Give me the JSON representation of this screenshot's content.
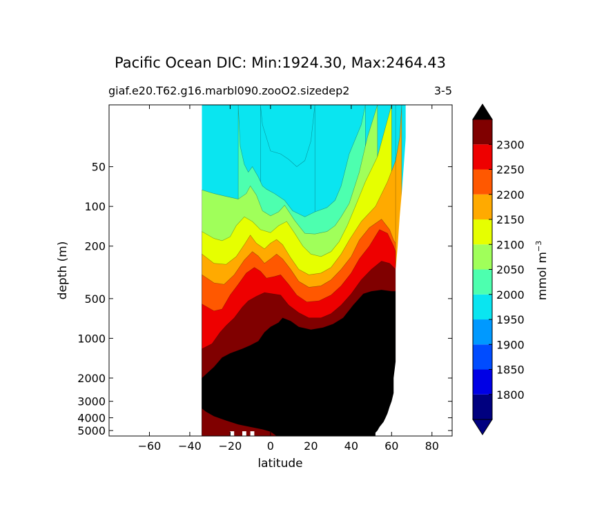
{
  "chart_data": {
    "type": "filled-contour",
    "title": "Pacific Ocean DIC: Min:1924.30, Max:2464.43",
    "subtitle_left": "giaf.e20.T62.g16.marbl090.zooO2.sizedep2",
    "subtitle_right": "3-5",
    "xlabel": "latitude",
    "ylabel": "depth (m)",
    "xlim": [
      -80,
      90
    ],
    "yscale": "log",
    "ylim_depth": [
      5500,
      17
    ],
    "x_ticks": [
      -60,
      -40,
      -20,
      0,
      20,
      40,
      60,
      80
    ],
    "x_tick_labels": [
      "−60",
      "−40",
      "−20",
      "0",
      "20",
      "40",
      "60",
      "80"
    ],
    "y_ticks": [
      50,
      100,
      200,
      500,
      1000,
      2000,
      3000,
      4000,
      5000
    ],
    "y_tick_labels": [
      "50",
      "100",
      "200",
      "500",
      "1000",
      "2000",
      "3000",
      "4000",
      "5000"
    ],
    "colorbar": {
      "label": "mmol m",
      "label_exponent": "−3",
      "levels": [
        1750,
        1800,
        1850,
        1900,
        1950,
        2000,
        2050,
        2100,
        2150,
        2200,
        2250,
        2300,
        2350
      ],
      "tick_values": [
        1800,
        1850,
        1900,
        1950,
        2000,
        2050,
        2100,
        2150,
        2200,
        2250,
        2300
      ],
      "tick_labels": [
        "1800",
        "1850",
        "1900",
        "1950",
        "2000",
        "2050",
        "2100",
        "2150",
        "2200",
        "2250",
        "2300"
      ],
      "colors": [
        "#00007f",
        "#0000e5",
        "#004cff",
        "#0099ff",
        "#0ae5f0",
        "#4dffaf",
        "#a0ff5a",
        "#e6ff00",
        "#ffaa00",
        "#ff5800",
        "#ee0000",
        "#800000"
      ],
      "extend": "both",
      "over_color": "#000000",
      "under_color": "#000080"
    },
    "ocean_extent_lat": [
      -34,
      67
    ],
    "surface_depth_m": 17,
    "bottom_depth_m": 5500,
    "contour_boundaries": [
      {
        "level": 1950,
        "points": [
          [
            -5,
            17
          ],
          [
            -4,
            24
          ],
          [
            0,
            38
          ],
          [
            5,
            40
          ],
          [
            9,
            44
          ],
          [
            13,
            50
          ],
          [
            17,
            45
          ],
          [
            20,
            32
          ],
          [
            22,
            17
          ]
        ]
      },
      {
        "level": 2000,
        "points": [
          [
            -16,
            17
          ],
          [
            -15,
            35
          ],
          [
            -13,
            48
          ],
          [
            -11,
            55
          ],
          [
            -9,
            50
          ],
          [
            -6,
            60
          ],
          [
            -4,
            70
          ],
          [
            -2,
            74
          ],
          [
            2,
            80
          ],
          [
            7,
            90
          ],
          [
            11,
            108
          ],
          [
            17,
            120
          ],
          [
            22,
            110
          ],
          [
            28,
            102
          ],
          [
            32,
            90
          ],
          [
            35,
            70
          ],
          [
            39,
            40
          ],
          [
            45,
            24
          ],
          [
            47,
            17
          ]
        ]
      },
      {
        "level": 2050,
        "points": [
          [
            -34,
            75
          ],
          [
            -28,
            80
          ],
          [
            -22,
            84
          ],
          [
            -16,
            88
          ],
          [
            -12,
            80
          ],
          [
            -10,
            70
          ],
          [
            -7,
            82
          ],
          [
            -4,
            108
          ],
          [
            0,
            118
          ],
          [
            4,
            110
          ],
          [
            7,
            98
          ],
          [
            12,
            128
          ],
          [
            17,
            160
          ],
          [
            22,
            162
          ],
          [
            28,
            155
          ],
          [
            32,
            140
          ],
          [
            35,
            120
          ],
          [
            39,
            95
          ],
          [
            44,
            55
          ],
          [
            48,
            30
          ],
          [
            53,
            17
          ]
        ]
      },
      {
        "level": 2100,
        "points": [
          [
            -34,
            155
          ],
          [
            -28,
            175
          ],
          [
            -24,
            182
          ],
          [
            -20,
            170
          ],
          [
            -17,
            140
          ],
          [
            -13,
            120
          ],
          [
            -9,
            130
          ],
          [
            -5,
            150
          ],
          [
            0,
            158
          ],
          [
            4,
            140
          ],
          [
            8,
            130
          ],
          [
            12,
            160
          ],
          [
            16,
            200
          ],
          [
            20,
            230
          ],
          [
            25,
            240
          ],
          [
            30,
            220
          ],
          [
            34,
            185
          ],
          [
            38,
            140
          ],
          [
            42,
            100
          ],
          [
            47,
            65
          ],
          [
            53,
            42
          ],
          [
            58,
            22
          ],
          [
            60,
            17
          ]
        ]
      },
      {
        "level": 2150,
        "points": [
          [
            -34,
            230
          ],
          [
            -28,
            270
          ],
          [
            -22,
            275
          ],
          [
            -17,
            240
          ],
          [
            -13,
            195
          ],
          [
            -10,
            165
          ],
          [
            -7,
            190
          ],
          [
            -3,
            210
          ],
          [
            0,
            190
          ],
          [
            3,
            178
          ],
          [
            6,
            195
          ],
          [
            10,
            245
          ],
          [
            14,
            300
          ],
          [
            19,
            330
          ],
          [
            25,
            320
          ],
          [
            30,
            290
          ],
          [
            35,
            230
          ],
          [
            39,
            180
          ],
          [
            45,
            130
          ],
          [
            52,
            100
          ],
          [
            58,
            65
          ],
          [
            62,
            45
          ],
          [
            64,
            30
          ],
          [
            65,
            17
          ]
        ]
      },
      {
        "level": 2200,
        "points": [
          [
            -34,
            330
          ],
          [
            -28,
            380
          ],
          [
            -23,
            390
          ],
          [
            -18,
            330
          ],
          [
            -13,
            255
          ],
          [
            -9,
            220
          ],
          [
            -6,
            238
          ],
          [
            -3,
            270
          ],
          [
            0,
            250
          ],
          [
            3,
            230
          ],
          [
            6,
            250
          ],
          [
            10,
            300
          ],
          [
            14,
            370
          ],
          [
            19,
            410
          ],
          [
            25,
            400
          ],
          [
            30,
            360
          ],
          [
            35,
            300
          ],
          [
            40,
            240
          ],
          [
            44,
            180
          ],
          [
            49,
            145
          ],
          [
            55,
            125
          ],
          [
            59,
            150
          ],
          [
            61,
            180
          ],
          [
            62,
            190
          ],
          [
            62,
            17
          ]
        ]
      },
      {
        "level": 2250,
        "points": [
          [
            -34,
            550
          ],
          [
            -28,
            620
          ],
          [
            -24,
            600
          ],
          [
            -20,
            470
          ],
          [
            -16,
            390
          ],
          [
            -12,
            320
          ],
          [
            -8,
            290
          ],
          [
            -5,
            310
          ],
          [
            -2,
            350
          ],
          [
            2,
            340
          ],
          [
            5,
            330
          ],
          [
            9,
            390
          ],
          [
            13,
            470
          ],
          [
            18,
            530
          ],
          [
            24,
            520
          ],
          [
            30,
            470
          ],
          [
            35,
            400
          ],
          [
            40,
            320
          ],
          [
            44,
            250
          ],
          [
            49,
            200
          ],
          [
            54,
            150
          ],
          [
            58,
            160
          ],
          [
            61,
            200
          ],
          [
            62,
            220
          ]
        ]
      },
      {
        "level": 2300,
        "points": [
          [
            -34,
            1200
          ],
          [
            -29,
            1100
          ],
          [
            -25,
            900
          ],
          [
            -22,
            800
          ],
          [
            -18,
            700
          ],
          [
            -14,
            580
          ],
          [
            -11,
            520
          ],
          [
            -7,
            480
          ],
          [
            -3,
            450
          ],
          [
            1,
            460
          ],
          [
            5,
            470
          ],
          [
            9,
            560
          ],
          [
            14,
            640
          ],
          [
            19,
            700
          ],
          [
            25,
            700
          ],
          [
            30,
            650
          ],
          [
            35,
            560
          ],
          [
            40,
            460
          ],
          [
            45,
            360
          ],
          [
            50,
            300
          ],
          [
            55,
            260
          ],
          [
            59,
            270
          ],
          [
            62,
            300
          ]
        ]
      },
      {
        "level": 2350,
        "points": [
          [
            -34,
            2000
          ],
          [
            -28,
            1650
          ],
          [
            -24,
            1400
          ],
          [
            -20,
            1300
          ],
          [
            -14,
            1200
          ],
          [
            -10,
            1130
          ],
          [
            -6,
            1050
          ],
          [
            -3,
            900
          ],
          [
            0,
            820
          ],
          [
            4,
            760
          ],
          [
            6,
            700
          ],
          [
            10,
            740
          ],
          [
            14,
            820
          ],
          [
            20,
            860
          ],
          [
            26,
            830
          ],
          [
            31,
            780
          ],
          [
            36,
            700
          ],
          [
            41,
            560
          ],
          [
            46,
            460
          ],
          [
            50,
            440
          ],
          [
            55,
            430
          ],
          [
            60,
            440
          ],
          [
            62,
            440
          ]
        ]
      }
    ],
    "deep_lower_layer": {
      "color": "#800000",
      "points": [
        [
          -34,
          3400
        ],
        [
          -32,
          3600
        ],
        [
          -28,
          3900
        ],
        [
          -22,
          4200
        ],
        [
          -16,
          4500
        ],
        [
          -10,
          4700
        ],
        [
          -4,
          4900
        ],
        [
          0,
          5100
        ],
        [
          3,
          5500
        ]
      ]
    },
    "bottom_topography": [
      [
        -34,
        5500
      ],
      [
        3,
        5500
      ],
      [
        52,
        5500
      ],
      [
        52,
        5200
      ],
      [
        53,
        5000
      ],
      [
        54,
        4700
      ],
      [
        55,
        4500
      ],
      [
        56,
        4300
      ],
      [
        57,
        4000
      ],
      [
        58,
        3700
      ],
      [
        59,
        3300
      ],
      [
        60,
        3000
      ],
      [
        61,
        2600
      ],
      [
        61,
        2000
      ],
      [
        62,
        1500
      ],
      [
        62,
        1000
      ],
      [
        62,
        600
      ],
      [
        62,
        300
      ],
      [
        63,
        200
      ],
      [
        64,
        120
      ],
      [
        65,
        80
      ],
      [
        66,
        50
      ],
      [
        67,
        30
      ],
      [
        67,
        17
      ]
    ],
    "seafloor_gaps": [
      [
        -20,
        -18,
        5000
      ],
      [
        -14,
        -12,
        5000
      ],
      [
        -10,
        -8,
        5000
      ]
    ]
  }
}
